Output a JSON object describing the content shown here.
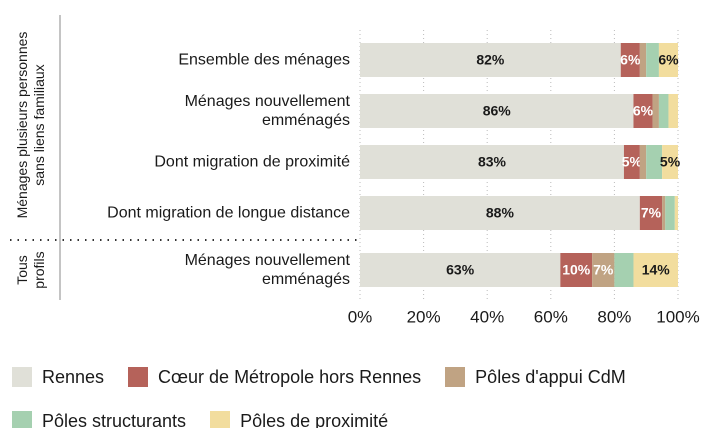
{
  "chart_data": {
    "type": "stacked-barh",
    "groups": [
      "Ménages plusieurs personnes\nsans liens familiaux",
      "Tous\nprofils"
    ],
    "categories": [
      "Ensemble des ménages",
      "Ménages nouvellement\nemménagés",
      "Dont migration de proximité",
      "Dont migration de longue distance",
      "Ménages nouvellement\nemménagés"
    ],
    "series": [
      {
        "name": "Rennes",
        "color": "#e0e0d8",
        "values": [
          82,
          86,
          83,
          88,
          63
        ],
        "value_labels": [
          "82%",
          "86%",
          "83%",
          "88%",
          "63%"
        ]
      },
      {
        "name": "Cœur de Métropole hors Rennes",
        "color": "#b5625a",
        "values": [
          6,
          6,
          5,
          7,
          10
        ],
        "value_labels": [
          "6%",
          "6%",
          "5%",
          "7%",
          "10%"
        ]
      },
      {
        "name": "Pôles d'appui CdM",
        "color": "#c0a383",
        "values": [
          2,
          2,
          2,
          1,
          7
        ],
        "value_labels": [
          null,
          null,
          null,
          null,
          "7%"
        ]
      },
      {
        "name": "Pôles structurants",
        "color": "#a5d0b0",
        "values": [
          4,
          3,
          5,
          3,
          6
        ],
        "value_labels": [
          null,
          null,
          null,
          null,
          null
        ]
      },
      {
        "name": "Pôles de proximité",
        "color": "#f2dd9e",
        "values": [
          6,
          3,
          5,
          1,
          14
        ],
        "value_labels": [
          "6%",
          null,
          "5%",
          null,
          "14%"
        ]
      }
    ],
    "xlim": [
      0,
      100
    ],
    "xticks": [
      {
        "value": 0,
        "label": "0%"
      },
      {
        "value": 20,
        "label": "20%"
      },
      {
        "value": 40,
        "label": "40%"
      },
      {
        "value": 60,
        "label": "60%"
      },
      {
        "value": 80,
        "label": "80%"
      },
      {
        "value": 100,
        "label": "100%"
      }
    ],
    "grid": true
  }
}
